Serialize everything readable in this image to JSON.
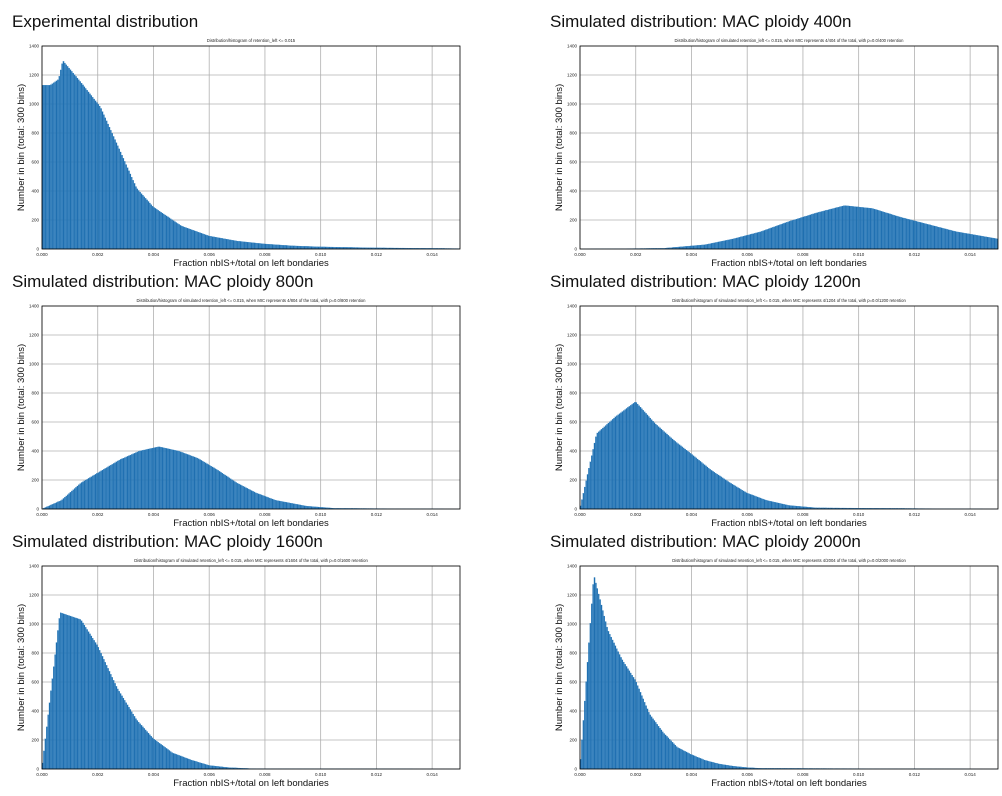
{
  "colors": {
    "bar": "#1f6fb0",
    "bar_edge": "#2b7fc0",
    "grid": "#b0b0b0",
    "axis": "#000000"
  },
  "chart_data": [
    {
      "type": "bar",
      "heading": "Experimental distribution",
      "title": "Distribution/histogram of retention_left <= 0.015",
      "xlabel": "Fraction nbIS+/total on left bondaries",
      "ylabel": "Number in bin (total: 300 bins)",
      "xlim": [
        0,
        0.015
      ],
      "ylim": [
        0,
        1400
      ],
      "xticks": [
        "0.000",
        "0.002",
        "0.004",
        "0.006",
        "0.008",
        "0.010",
        "0.012",
        "0.014"
      ],
      "yticks": [
        "0",
        "200",
        "400",
        "600",
        "800",
        "1000",
        "1200",
        "1400"
      ],
      "bins": 300,
      "series": [
        {
          "x": 0.0003,
          "y": 1130
        },
        {
          "x": 0.0006,
          "y": 1170
        },
        {
          "x": 0.00075,
          "y": 1300
        },
        {
          "x": 0.0014,
          "y": 1150
        },
        {
          "x": 0.0021,
          "y": 980
        },
        {
          "x": 0.0028,
          "y": 680
        },
        {
          "x": 0.0034,
          "y": 420
        },
        {
          "x": 0.004,
          "y": 290
        },
        {
          "x": 0.005,
          "y": 160
        },
        {
          "x": 0.006,
          "y": 90
        },
        {
          "x": 0.007,
          "y": 55
        },
        {
          "x": 0.008,
          "y": 35
        },
        {
          "x": 0.009,
          "y": 22
        },
        {
          "x": 0.01,
          "y": 15
        },
        {
          "x": 0.012,
          "y": 8
        },
        {
          "x": 0.014,
          "y": 5
        },
        {
          "x": 0.015,
          "y": 3
        }
      ]
    },
    {
      "type": "bar",
      "heading": "Simulated distribution: MAC ploidy 400n",
      "title": "Distribution/histogram of simulated retention_left <= 0.015, when MIC represents 4/404 of the total, with p=0.0/400 retention",
      "xlabel": "Fraction nbIS+/total on left bondaries",
      "ylabel": "Number in bin (total: 300 bins)",
      "xlim": [
        0,
        0.015
      ],
      "ylim": [
        0,
        1400
      ],
      "xticks": [
        "0.000",
        "0.002",
        "0.004",
        "0.006",
        "0.008",
        "0.010",
        "0.012",
        "0.014"
      ],
      "yticks": [
        "0",
        "200",
        "400",
        "600",
        "800",
        "1000",
        "1200",
        "1400"
      ],
      "bins": 300,
      "series": [
        {
          "x": 0.0,
          "y": 0
        },
        {
          "x": 0.003,
          "y": 5
        },
        {
          "x": 0.0045,
          "y": 30
        },
        {
          "x": 0.0055,
          "y": 70
        },
        {
          "x": 0.0065,
          "y": 120
        },
        {
          "x": 0.0075,
          "y": 190
        },
        {
          "x": 0.0085,
          "y": 250
        },
        {
          "x": 0.0095,
          "y": 300
        },
        {
          "x": 0.0105,
          "y": 280
        },
        {
          "x": 0.0115,
          "y": 220
        },
        {
          "x": 0.0125,
          "y": 170
        },
        {
          "x": 0.0135,
          "y": 120
        },
        {
          "x": 0.015,
          "y": 70
        }
      ]
    },
    {
      "type": "bar",
      "heading": "Simulated distribution: MAC ploidy 800n",
      "title": "Distribution/histogram of simulated retention_left <= 0.015, when MIC represents 4/804 of the total, with p=0.0/800 retention",
      "xlabel": "Fraction nbIS+/total on left bondaries",
      "ylabel": "Number in bin (total: 300 bins)",
      "xlim": [
        0,
        0.015
      ],
      "ylim": [
        0,
        1400
      ],
      "xticks": [
        "0.000",
        "0.002",
        "0.004",
        "0.006",
        "0.008",
        "0.010",
        "0.012",
        "0.014"
      ],
      "yticks": [
        "0",
        "200",
        "400",
        "600",
        "800",
        "1000",
        "1200",
        "1400"
      ],
      "bins": 300,
      "series": [
        {
          "x": 0.0,
          "y": 0
        },
        {
          "x": 0.0007,
          "y": 60
        },
        {
          "x": 0.0014,
          "y": 180
        },
        {
          "x": 0.0021,
          "y": 260
        },
        {
          "x": 0.0028,
          "y": 340
        },
        {
          "x": 0.0035,
          "y": 400
        },
        {
          "x": 0.0042,
          "y": 430
        },
        {
          "x": 0.0049,
          "y": 400
        },
        {
          "x": 0.0056,
          "y": 350
        },
        {
          "x": 0.0063,
          "y": 270
        },
        {
          "x": 0.007,
          "y": 180
        },
        {
          "x": 0.0077,
          "y": 110
        },
        {
          "x": 0.0084,
          "y": 60
        },
        {
          "x": 0.0095,
          "y": 20
        },
        {
          "x": 0.0105,
          "y": 5
        },
        {
          "x": 0.015,
          "y": 0
        }
      ]
    },
    {
      "type": "bar",
      "heading": "Simulated distribution: MAC ploidy 1200n",
      "title": "Distribution/histogram of simulated retention_left <= 0.015, when MIC represents 4/1204 of the total, with p=0.0/1200 retention",
      "xlabel": "Fraction nbIS+/total on left bondaries",
      "ylabel": "Number in bin (total: 300 bins)",
      "xlim": [
        0,
        0.015
      ],
      "ylim": [
        0,
        1400
      ],
      "xticks": [
        "0.000",
        "0.002",
        "0.004",
        "0.006",
        "0.008",
        "0.010",
        "0.012",
        "0.014"
      ],
      "yticks": [
        "0",
        "200",
        "400",
        "600",
        "800",
        "1000",
        "1200",
        "1400"
      ],
      "bins": 300,
      "series": [
        {
          "x": 0.0,
          "y": 0
        },
        {
          "x": 0.0006,
          "y": 520
        },
        {
          "x": 0.0013,
          "y": 640
        },
        {
          "x": 0.002,
          "y": 740
        },
        {
          "x": 0.0027,
          "y": 590
        },
        {
          "x": 0.0034,
          "y": 470
        },
        {
          "x": 0.004,
          "y": 380
        },
        {
          "x": 0.0047,
          "y": 270
        },
        {
          "x": 0.0054,
          "y": 180
        },
        {
          "x": 0.006,
          "y": 110
        },
        {
          "x": 0.0067,
          "y": 60
        },
        {
          "x": 0.0075,
          "y": 25
        },
        {
          "x": 0.0085,
          "y": 8
        },
        {
          "x": 0.015,
          "y": 0
        }
      ]
    },
    {
      "type": "bar",
      "heading": "Simulated distribution: MAC ploidy 1600n",
      "title": "Distribution/histogram of simulated retention_left <= 0.015, when MIC represents 4/1604 of the total, with p=0.0/1600 retention",
      "xlabel": "Fraction nbIS+/total on left bondaries",
      "ylabel": "Number in bin (total: 300 bins)",
      "xlim": [
        0,
        0.015
      ],
      "ylim": [
        0,
        1400
      ],
      "xticks": [
        "0.000",
        "0.002",
        "0.004",
        "0.006",
        "0.008",
        "0.010",
        "0.012",
        "0.014"
      ],
      "yticks": [
        "0",
        "200",
        "400",
        "600",
        "800",
        "1000",
        "1200",
        "1400"
      ],
      "bins": 300,
      "series": [
        {
          "x": 0.0,
          "y": 0
        },
        {
          "x": 0.00065,
          "y": 1080
        },
        {
          "x": 0.0014,
          "y": 1030
        },
        {
          "x": 0.002,
          "y": 850
        },
        {
          "x": 0.0027,
          "y": 560
        },
        {
          "x": 0.0034,
          "y": 340
        },
        {
          "x": 0.004,
          "y": 210
        },
        {
          "x": 0.0047,
          "y": 110
        },
        {
          "x": 0.0054,
          "y": 60
        },
        {
          "x": 0.006,
          "y": 25
        },
        {
          "x": 0.0067,
          "y": 10
        },
        {
          "x": 0.0075,
          "y": 3
        },
        {
          "x": 0.015,
          "y": 0
        }
      ]
    },
    {
      "type": "bar",
      "heading": "Simulated distribution: MAC ploidy 2000n",
      "title": "Distribution/histogram of simulated retention_left <= 0.015, when MIC represents 4/2004 of the total, with p=0.0/2000 retention",
      "xlabel": "Fraction nbIS+/total on left bondaries",
      "ylabel": "Number in bin (total: 300 bins)",
      "xlim": [
        0,
        0.015
      ],
      "ylim": [
        0,
        1400
      ],
      "xticks": [
        "0.000",
        "0.002",
        "0.004",
        "0.006",
        "0.008",
        "0.010",
        "0.012",
        "0.014"
      ],
      "yticks": [
        "0",
        "200",
        "400",
        "600",
        "800",
        "1000",
        "1200",
        "1400"
      ],
      "bins": 300,
      "series": [
        {
          "x": 0.0,
          "y": 0
        },
        {
          "x": 0.0005,
          "y": 1340
        },
        {
          "x": 0.001,
          "y": 960
        },
        {
          "x": 0.0015,
          "y": 760
        },
        {
          "x": 0.002,
          "y": 610
        },
        {
          "x": 0.0025,
          "y": 380
        },
        {
          "x": 0.003,
          "y": 250
        },
        {
          "x": 0.0035,
          "y": 150
        },
        {
          "x": 0.004,
          "y": 100
        },
        {
          "x": 0.0045,
          "y": 60
        },
        {
          "x": 0.005,
          "y": 35
        },
        {
          "x": 0.0055,
          "y": 20
        },
        {
          "x": 0.006,
          "y": 10
        },
        {
          "x": 0.0065,
          "y": 5
        },
        {
          "x": 0.015,
          "y": 0
        }
      ]
    }
  ]
}
